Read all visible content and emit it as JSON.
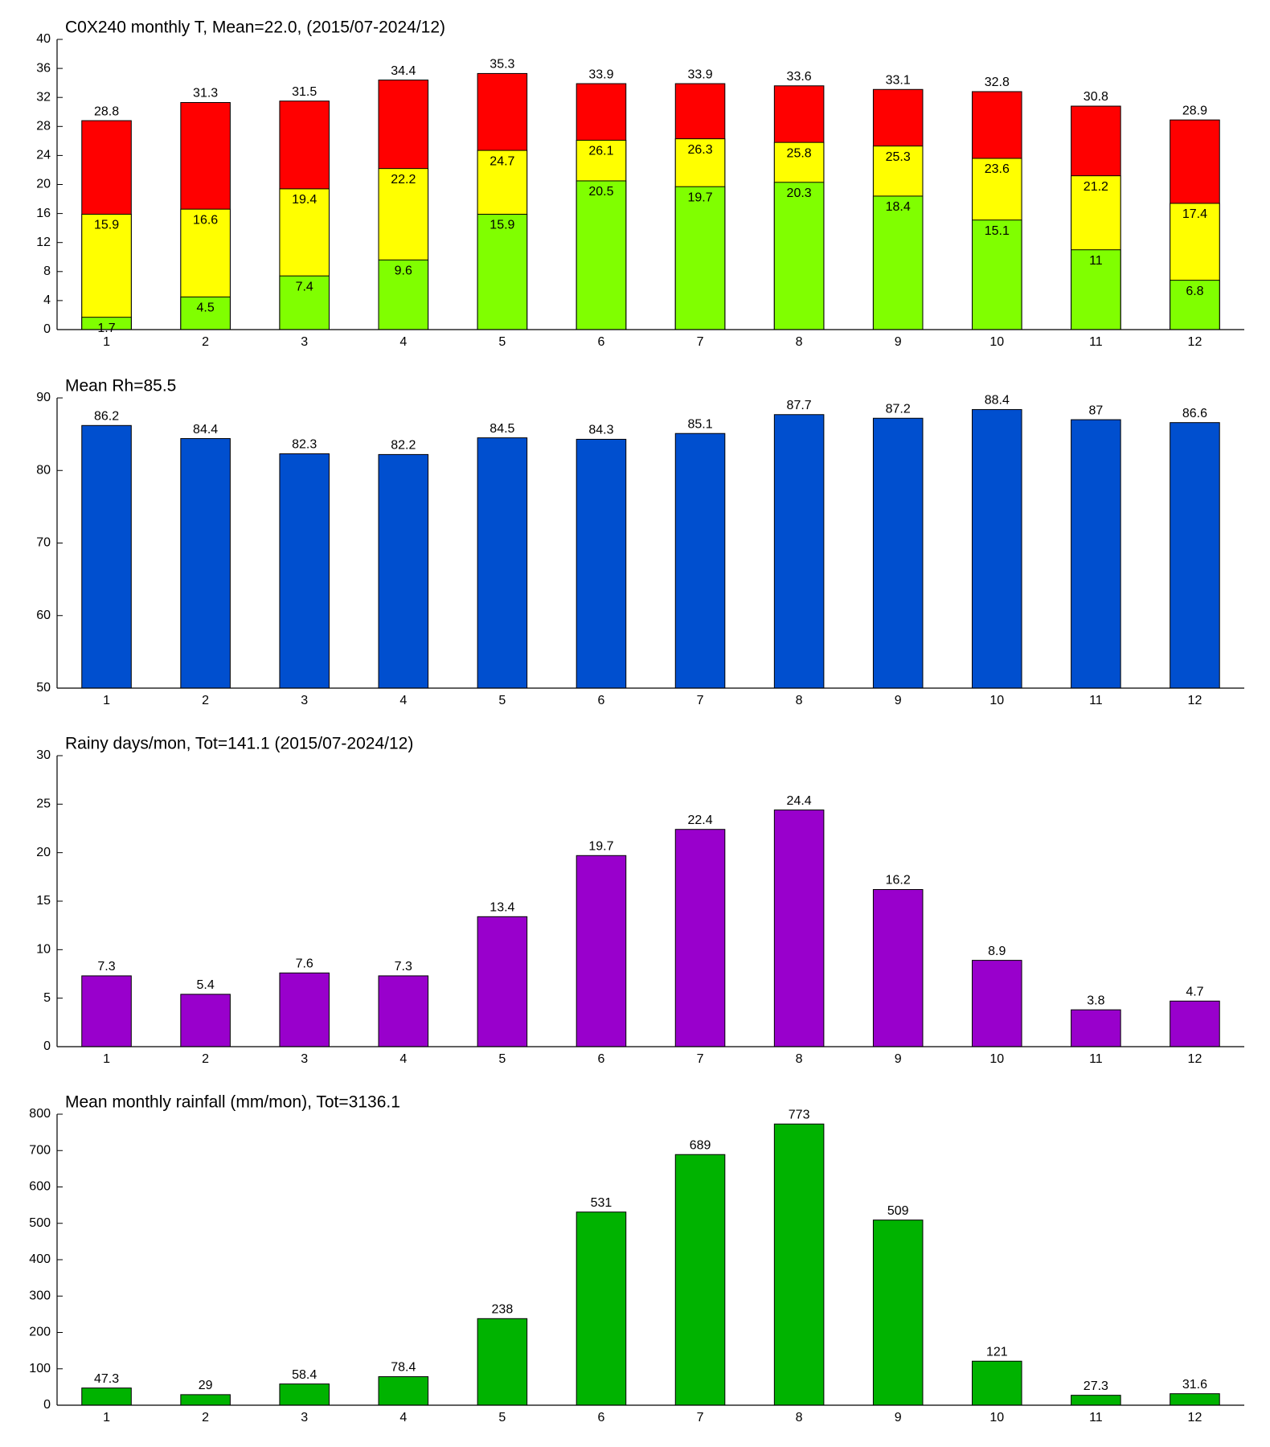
{
  "chart_data": [
    {
      "type": "level-bar",
      "title": "C0X240 monthly T, Mean=22.0, (2015/07-2024/12)",
      "categories": [
        "1",
        "2",
        "3",
        "4",
        "5",
        "6",
        "7",
        "8",
        "9",
        "10",
        "11",
        "12"
      ],
      "series": [
        {
          "color": "#ff0000",
          "values": [
            28.8,
            31.3,
            31.5,
            34.4,
            35.3,
            33.9,
            33.9,
            33.6,
            33.1,
            32.8,
            30.8,
            28.9
          ]
        },
        {
          "color": "#ffff00",
          "values": [
            15.9,
            16.6,
            19.4,
            22.2,
            24.7,
            26.1,
            26.3,
            25.8,
            25.3,
            23.6,
            21.2,
            17.4
          ]
        },
        {
          "color": "#80ff00",
          "values": [
            1.7,
            4.5,
            7.4,
            9.6,
            15.9,
            20.5,
            19.7,
            20.3,
            18.4,
            15.1,
            11,
            6.8
          ]
        }
      ],
      "ylim": [
        0,
        40
      ],
      "yticks": [
        0,
        4,
        8,
        12,
        16,
        20,
        24,
        28,
        32,
        36,
        40
      ]
    },
    {
      "type": "bar",
      "title": "Mean Rh=85.5",
      "categories": [
        "1",
        "2",
        "3",
        "4",
        "5",
        "6",
        "7",
        "8",
        "9",
        "10",
        "11",
        "12"
      ],
      "values": [
        86.2,
        84.4,
        82.3,
        82.2,
        84.5,
        84.3,
        85.1,
        87.7,
        87.2,
        88.4,
        87,
        86.6
      ],
      "color": "#004fcf",
      "ylim": [
        50,
        90
      ],
      "yticks": [
        50,
        60,
        70,
        80,
        90
      ]
    },
    {
      "type": "bar",
      "title": "Rainy days/mon, Tot=141.1 (2015/07-2024/12)",
      "categories": [
        "1",
        "2",
        "3",
        "4",
        "5",
        "6",
        "7",
        "8",
        "9",
        "10",
        "11",
        "12"
      ],
      "values": [
        7.3,
        5.4,
        7.6,
        7.3,
        13.4,
        19.7,
        22.4,
        24.4,
        16.2,
        8.9,
        3.8,
        4.7
      ],
      "color": "#9900cc",
      "ylim": [
        0,
        30
      ],
      "yticks": [
        0,
        5,
        10,
        15,
        20,
        25,
        30
      ]
    },
    {
      "type": "bar",
      "title": "Mean monthly rainfall (mm/mon), Tot=3136.1",
      "categories": [
        "1",
        "2",
        "3",
        "4",
        "5",
        "6",
        "7",
        "8",
        "9",
        "10",
        "11",
        "12"
      ],
      "values": [
        47.3,
        29,
        58.4,
        78.4,
        238,
        531,
        689,
        773,
        509,
        121,
        27.3,
        31.6
      ],
      "color": "#00b300",
      "ylim": [
        0,
        800
      ],
      "yticks": [
        0,
        100,
        200,
        300,
        400,
        500,
        600,
        700,
        800
      ]
    }
  ]
}
